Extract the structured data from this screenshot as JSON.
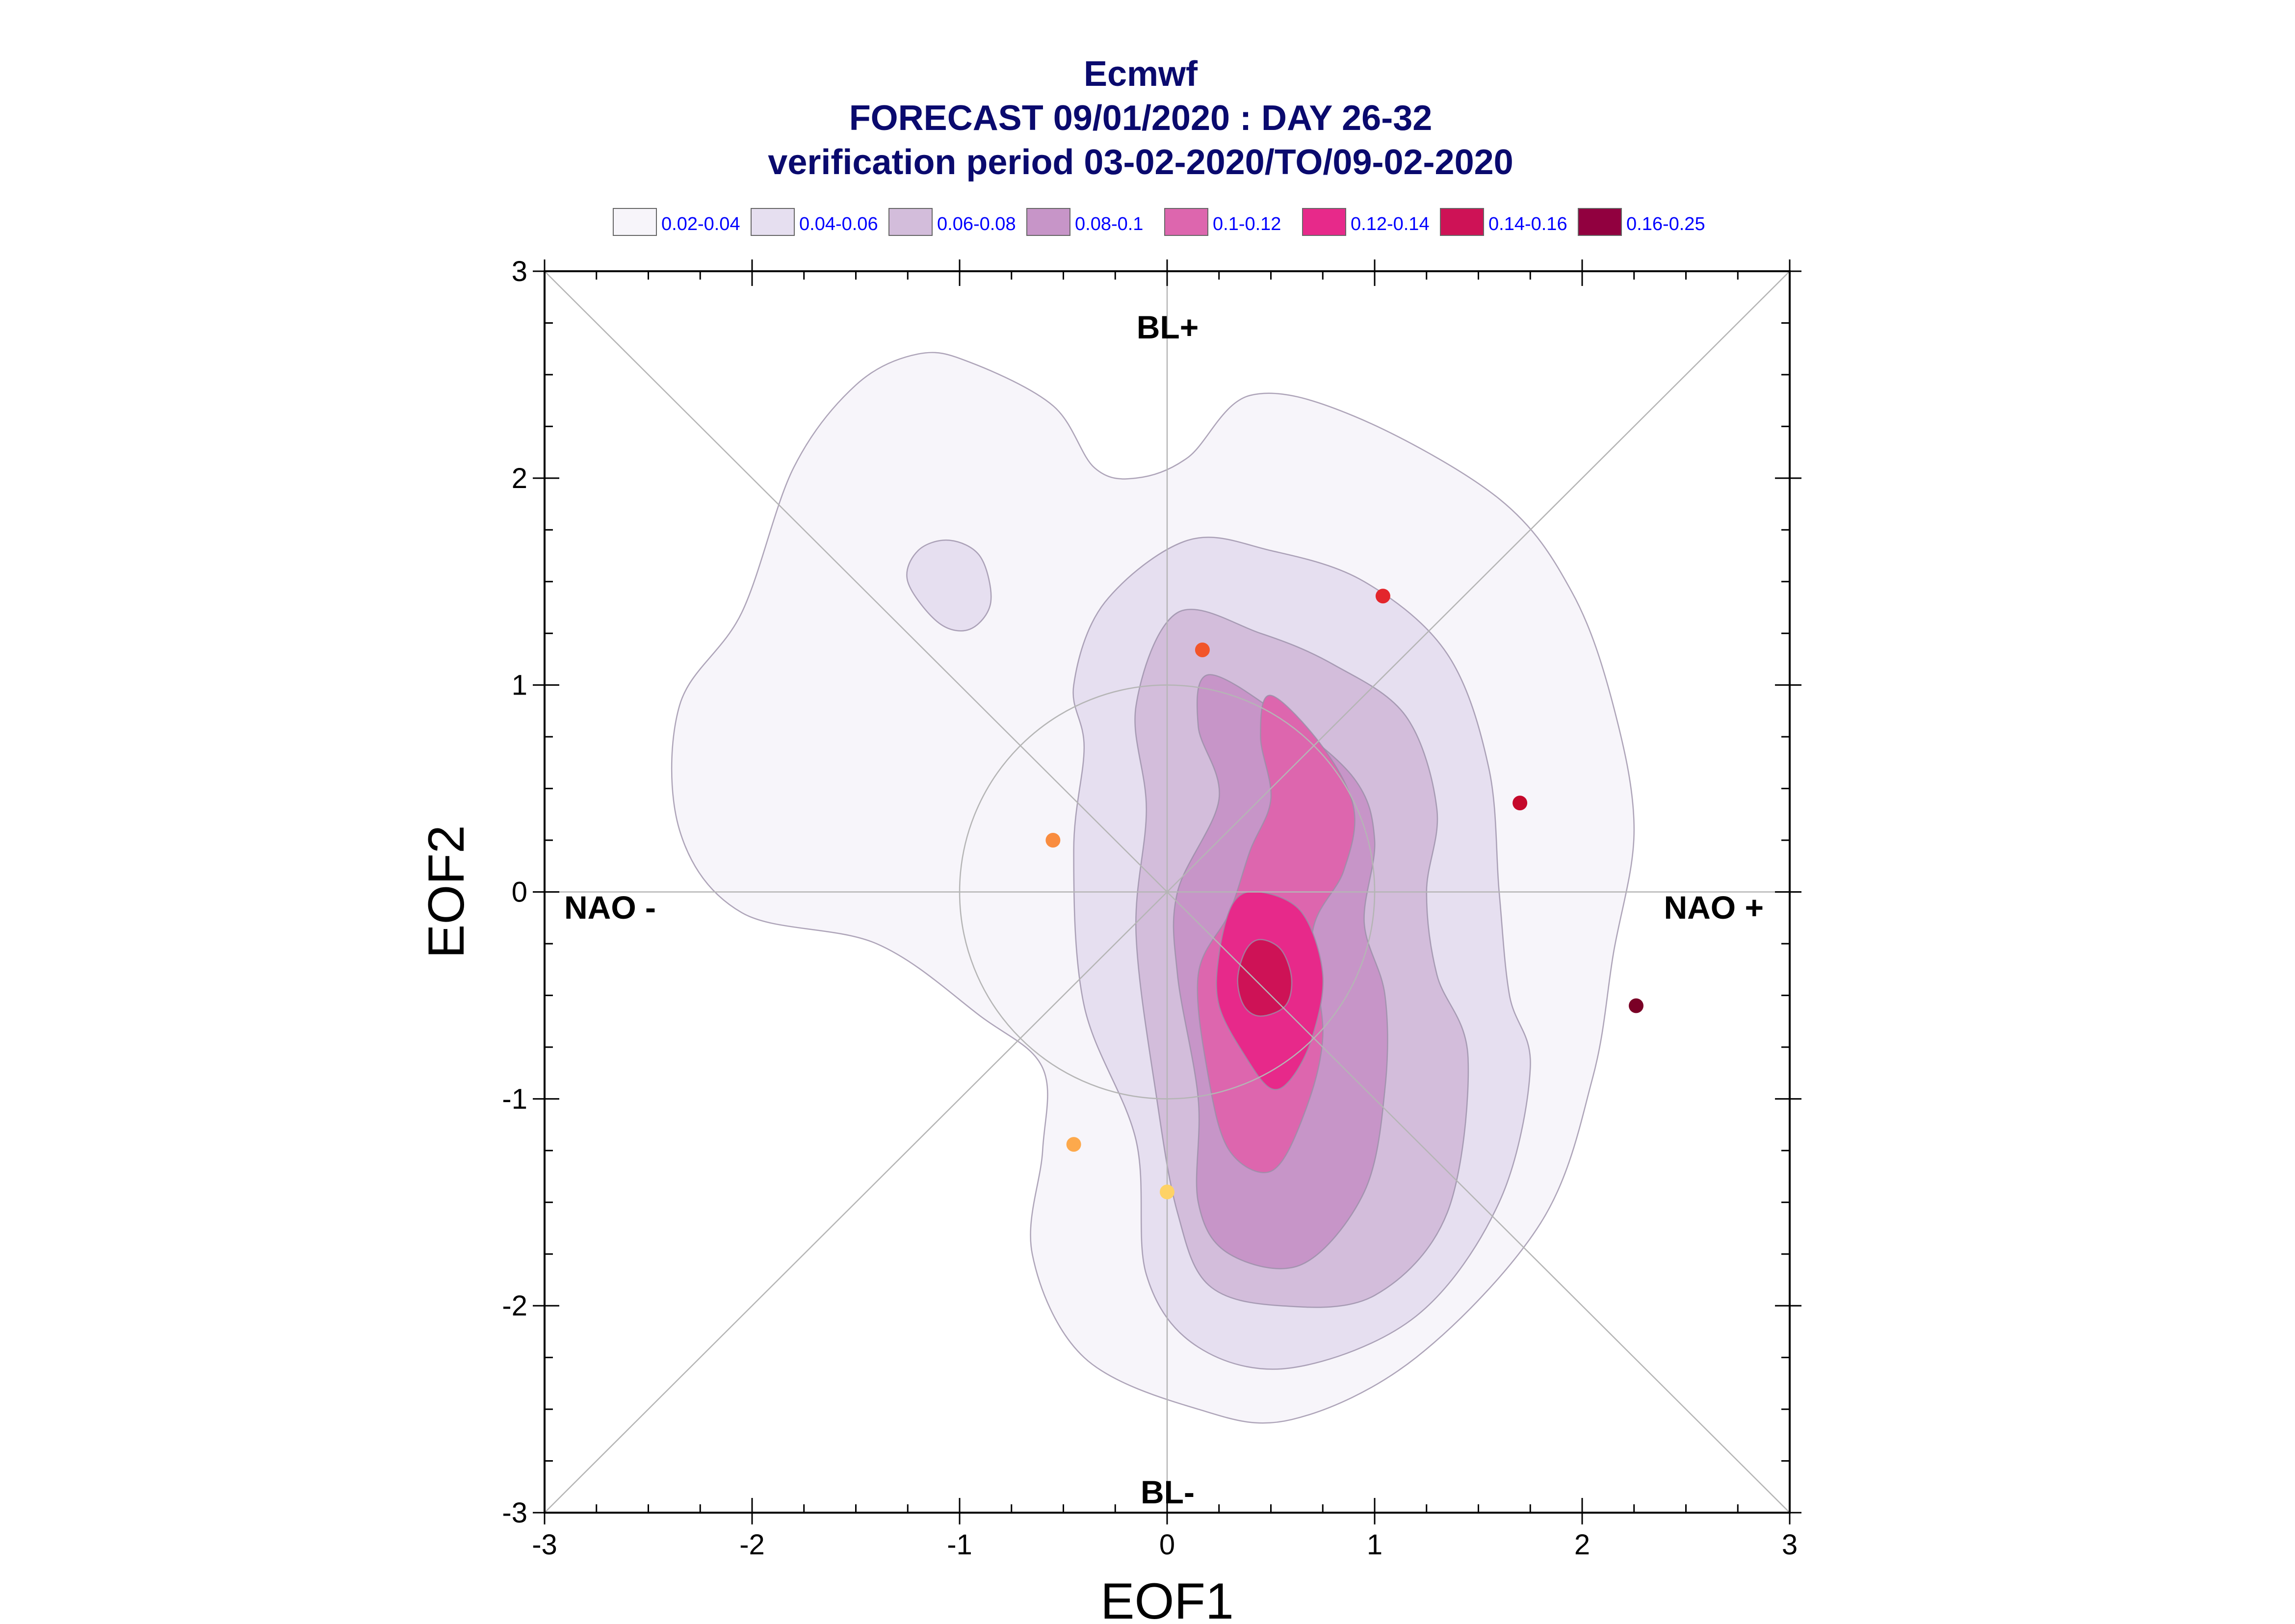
{
  "chart_data": {
    "type": "contour",
    "title": "Ecmwf",
    "subtitle": "FORECAST 09/01/2020 : DAY 26-32",
    "period": "verification period 03-02-2020/TO/09-02-2020",
    "xlabel": "EOF1",
    "ylabel": "EOF2",
    "xlim": [
      -3,
      3
    ],
    "ylim": [
      -3,
      3
    ],
    "xticks": [
      "-3",
      "-2",
      "-1",
      "0",
      "1",
      "2",
      "3"
    ],
    "yticks": [
      "-3",
      "-2",
      "-1",
      "0",
      "1",
      "2",
      "3"
    ],
    "regime_labels": {
      "top": "BL+",
      "bottom": "BL-",
      "left": "NAO -",
      "right": "NAO +"
    },
    "legend": [
      {
        "label": "0.02-0.04",
        "color": "#f7f5fa"
      },
      {
        "label": "0.04-0.06",
        "color": "#e6dff0"
      },
      {
        "label": "0.06-0.08",
        "color": "#d3bddb"
      },
      {
        "label": "0.08-0.1",
        "color": "#c795c8"
      },
      {
        "label": "0.1-0.12",
        "color": "#dd66ae"
      },
      {
        "label": "0.12-0.14",
        "color": "#e7298a"
      },
      {
        "label": "0.14-0.16",
        "color": "#ce1256"
      },
      {
        "label": "0.16-0.25",
        "color": "#91003f"
      }
    ],
    "reference_circle_radius": 1,
    "contours": [
      {
        "level": "0.02-0.04",
        "points": [
          [
            -0.95,
            2.56
          ],
          [
            -0.55,
            2.35
          ],
          [
            -0.35,
            2.05
          ],
          [
            -0.15,
            2.0
          ],
          [
            0.1,
            2.1
          ],
          [
            0.4,
            2.4
          ],
          [
            0.9,
            2.3
          ],
          [
            1.6,
            1.9
          ],
          [
            1.95,
            1.45
          ],
          [
            2.15,
            0.9
          ],
          [
            2.25,
            0.3
          ],
          [
            2.15,
            -0.3
          ],
          [
            2.05,
            -0.9
          ],
          [
            1.8,
            -1.6
          ],
          [
            1.2,
            -2.25
          ],
          [
            0.6,
            -2.55
          ],
          [
            0.15,
            -2.5
          ],
          [
            -0.4,
            -2.25
          ],
          [
            -0.65,
            -1.75
          ],
          [
            -0.6,
            -1.25
          ],
          [
            -0.6,
            -0.85
          ],
          [
            -0.9,
            -0.6
          ],
          [
            -1.4,
            -0.25
          ],
          [
            -2.05,
            -0.1
          ],
          [
            -2.35,
            0.3
          ],
          [
            -2.35,
            0.9
          ],
          [
            -2.05,
            1.35
          ],
          [
            -1.8,
            2.05
          ],
          [
            -1.5,
            2.45
          ],
          [
            -1.2,
            2.6
          ]
        ]
      },
      {
        "level": "0.04-0.06",
        "points": [
          [
            0.1,
            1.7
          ],
          [
            0.5,
            1.65
          ],
          [
            0.95,
            1.5
          ],
          [
            1.35,
            1.15
          ],
          [
            1.55,
            0.6
          ],
          [
            1.6,
            0.0
          ],
          [
            1.65,
            -0.5
          ],
          [
            1.75,
            -0.85
          ],
          [
            1.6,
            -1.5
          ],
          [
            1.2,
            -2.05
          ],
          [
            0.6,
            -2.3
          ],
          [
            0.15,
            -2.2
          ],
          [
            -0.1,
            -1.85
          ],
          [
            -0.15,
            -1.2
          ],
          [
            -0.4,
            -0.55
          ],
          [
            -0.45,
            0.2
          ],
          [
            -0.4,
            0.7
          ],
          [
            -0.45,
            1.0
          ],
          [
            -0.3,
            1.4
          ]
        ]
      },
      {
        "level": "0.04-0.06",
        "points": [
          [
            -1.05,
            1.7
          ],
          [
            -0.9,
            1.62
          ],
          [
            -0.85,
            1.4
          ],
          [
            -0.95,
            1.27
          ],
          [
            -1.1,
            1.3
          ],
          [
            -1.25,
            1.5
          ],
          [
            -1.2,
            1.65
          ]
        ]
      },
      {
        "level": "0.06-0.08",
        "points": [
          [
            0.05,
            1.35
          ],
          [
            0.45,
            1.25
          ],
          [
            0.8,
            1.1
          ],
          [
            1.15,
            0.85
          ],
          [
            1.3,
            0.4
          ],
          [
            1.25,
            0.0
          ],
          [
            1.3,
            -0.4
          ],
          [
            1.45,
            -0.8
          ],
          [
            1.35,
            -1.55
          ],
          [
            1.0,
            -1.95
          ],
          [
            0.55,
            -2.0
          ],
          [
            0.2,
            -1.9
          ],
          [
            0.05,
            -1.55
          ],
          [
            -0.05,
            -1.0
          ],
          [
            -0.15,
            -0.2
          ],
          [
            -0.1,
            0.4
          ],
          [
            -0.15,
            0.9
          ]
        ]
      },
      {
        "level": "0.08-0.1",
        "points": [
          [
            0.2,
            1.05
          ],
          [
            0.55,
            0.85
          ],
          [
            0.9,
            0.55
          ],
          [
            1.0,
            0.25
          ],
          [
            0.95,
            -0.15
          ],
          [
            1.05,
            -0.5
          ],
          [
            1.05,
            -0.95
          ],
          [
            0.95,
            -1.45
          ],
          [
            0.65,
            -1.8
          ],
          [
            0.3,
            -1.75
          ],
          [
            0.15,
            -1.5
          ],
          [
            0.15,
            -1.0
          ],
          [
            0.05,
            -0.4
          ],
          [
            0.05,
            0.0
          ],
          [
            0.25,
            0.45
          ],
          [
            0.15,
            0.8
          ]
        ]
      },
      {
        "level": "0.1-0.12",
        "points": [
          [
            0.5,
            0.95
          ],
          [
            0.75,
            0.7
          ],
          [
            0.9,
            0.4
          ],
          [
            0.85,
            0.1
          ],
          [
            0.7,
            -0.2
          ],
          [
            0.75,
            -0.7
          ],
          [
            0.65,
            -1.1
          ],
          [
            0.5,
            -1.35
          ],
          [
            0.3,
            -1.25
          ],
          [
            0.2,
            -0.9
          ],
          [
            0.15,
            -0.4
          ],
          [
            0.3,
            -0.1
          ],
          [
            0.4,
            0.2
          ],
          [
            0.5,
            0.45
          ],
          [
            0.45,
            0.75
          ]
        ]
      },
      {
        "level": "0.12-0.14",
        "points": [
          [
            0.45,
            0.0
          ],
          [
            0.65,
            -0.1
          ],
          [
            0.75,
            -0.4
          ],
          [
            0.7,
            -0.7
          ],
          [
            0.6,
            -0.9
          ],
          [
            0.5,
            -0.95
          ],
          [
            0.38,
            -0.8
          ],
          [
            0.25,
            -0.55
          ],
          [
            0.25,
            -0.3
          ],
          [
            0.32,
            -0.05
          ]
        ]
      },
      {
        "level": "0.14-0.16",
        "points": [
          [
            0.45,
            -0.23
          ],
          [
            0.55,
            -0.28
          ],
          [
            0.6,
            -0.42
          ],
          [
            0.57,
            -0.55
          ],
          [
            0.45,
            -0.6
          ],
          [
            0.37,
            -0.55
          ],
          [
            0.34,
            -0.42
          ],
          [
            0.38,
            -0.28
          ]
        ]
      }
    ],
    "members": [
      {
        "x": 1.04,
        "y": 1.43,
        "color": "#e3262c"
      },
      {
        "x": 0.17,
        "y": 1.17,
        "color": "#f2552a"
      },
      {
        "x": 1.7,
        "y": 0.43,
        "color": "#c5082b"
      },
      {
        "x": -0.55,
        "y": 0.25,
        "color": "#f98c3f"
      },
      {
        "x": 2.26,
        "y": -0.55,
        "color": "#7a0026"
      },
      {
        "x": -0.45,
        "y": -1.22,
        "color": "#fda94c"
      },
      {
        "x": 0.0,
        "y": -1.45,
        "color": "#fed266"
      }
    ]
  }
}
